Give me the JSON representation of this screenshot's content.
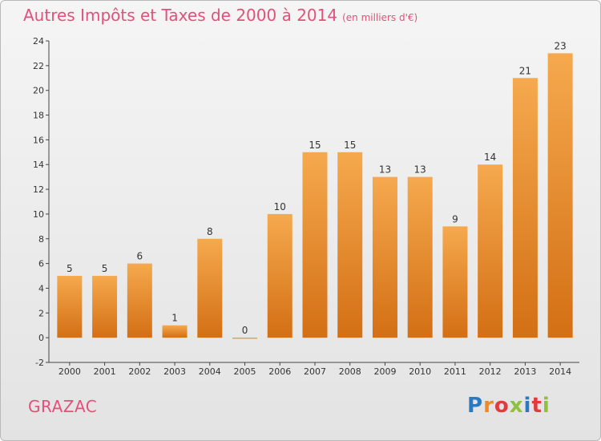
{
  "title": "Autres Impôts et Taxes de 2000 à 2014",
  "unit": "(en milliers d'€)",
  "town": "GRAZAC",
  "logo": [
    "P",
    "r",
    "o",
    "x",
    "i",
    "t",
    "i"
  ],
  "colors": {
    "title": "#e0527a",
    "bar_light": "#f6a94e",
    "bar_dark": "#d36f14",
    "axis": "#444444"
  },
  "chart_data": {
    "type": "bar",
    "title": "Autres Impôts et Taxes de 2000 à 2014",
    "xlabel": "",
    "ylabel": "",
    "ylim": [
      -2,
      24
    ],
    "yticks": [
      -2,
      0,
      2,
      4,
      6,
      8,
      10,
      12,
      14,
      16,
      18,
      20,
      22,
      24
    ],
    "categories": [
      "2000",
      "2001",
      "2002",
      "2003",
      "2004",
      "2005",
      "2006",
      "2007",
      "2008",
      "2009",
      "2010",
      "2011",
      "2012",
      "2013",
      "2014"
    ],
    "values": [
      5,
      5,
      6,
      1,
      8,
      0,
      10,
      15,
      15,
      13,
      13,
      9,
      14,
      21,
      23
    ],
    "grid": false,
    "data_labels": true
  }
}
